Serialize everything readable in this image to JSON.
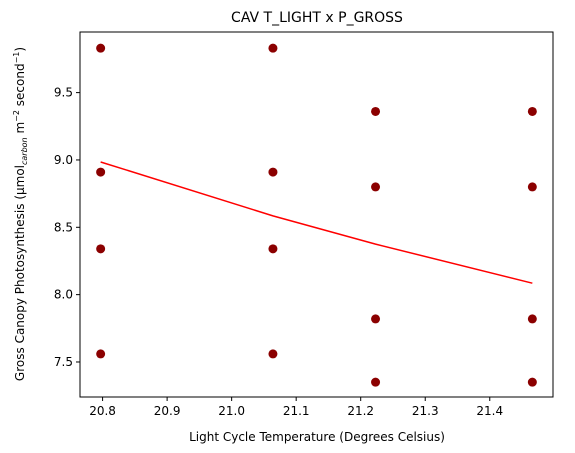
{
  "chart_data": {
    "type": "scatter",
    "title": "CAV T_LIGHT x P_GROSS",
    "xlabel": "Light Cycle Temperature (Degrees Celsius)",
    "ylabel_parts": {
      "prefix": "Gross Canopy Photosynthesis (μmol",
      "subscript": "carbon",
      "middle": " m",
      "sup1": "−2",
      "middle2": " second",
      "sup2": "−1",
      "suffix": ")"
    },
    "xlim": [
      20.765,
      21.498
    ],
    "ylim": [
      7.24,
      9.95
    ],
    "x_ticks": [
      20.8,
      20.9,
      21.0,
      21.1,
      21.2,
      21.3,
      21.4
    ],
    "x_tick_labels": [
      "20.8",
      "20.9",
      "21.0",
      "21.1",
      "21.2",
      "21.3",
      "21.4"
    ],
    "y_ticks": [
      7.5,
      8.0,
      8.5,
      9.0,
      9.5
    ],
    "y_tick_labels": [
      "7.5",
      "8.0",
      "8.5",
      "9.0",
      "9.5"
    ],
    "grid": false,
    "points": [
      {
        "x": 20.797,
        "y": 9.83
      },
      {
        "x": 20.797,
        "y": 8.91
      },
      {
        "x": 20.797,
        "y": 8.34
      },
      {
        "x": 20.797,
        "y": 7.56
      },
      {
        "x": 21.064,
        "y": 9.83
      },
      {
        "x": 21.064,
        "y": 8.91
      },
      {
        "x": 21.064,
        "y": 8.34
      },
      {
        "x": 21.064,
        "y": 7.56
      },
      {
        "x": 21.223,
        "y": 9.36
      },
      {
        "x": 21.223,
        "y": 8.8
      },
      {
        "x": 21.223,
        "y": 7.82
      },
      {
        "x": 21.223,
        "y": 7.35
      },
      {
        "x": 21.466,
        "y": 9.36
      },
      {
        "x": 21.466,
        "y": 8.8
      },
      {
        "x": 21.466,
        "y": 7.82
      },
      {
        "x": 21.466,
        "y": 7.35
      }
    ],
    "trend_line": [
      {
        "x": 20.797,
        "y": 8.985
      },
      {
        "x": 21.064,
        "y": 8.585
      },
      {
        "x": 21.223,
        "y": 8.375
      },
      {
        "x": 21.466,
        "y": 8.085
      }
    ],
    "colors": {
      "points": "#8b0000",
      "trend_line": "#ff0000",
      "axes": "#000000"
    }
  }
}
